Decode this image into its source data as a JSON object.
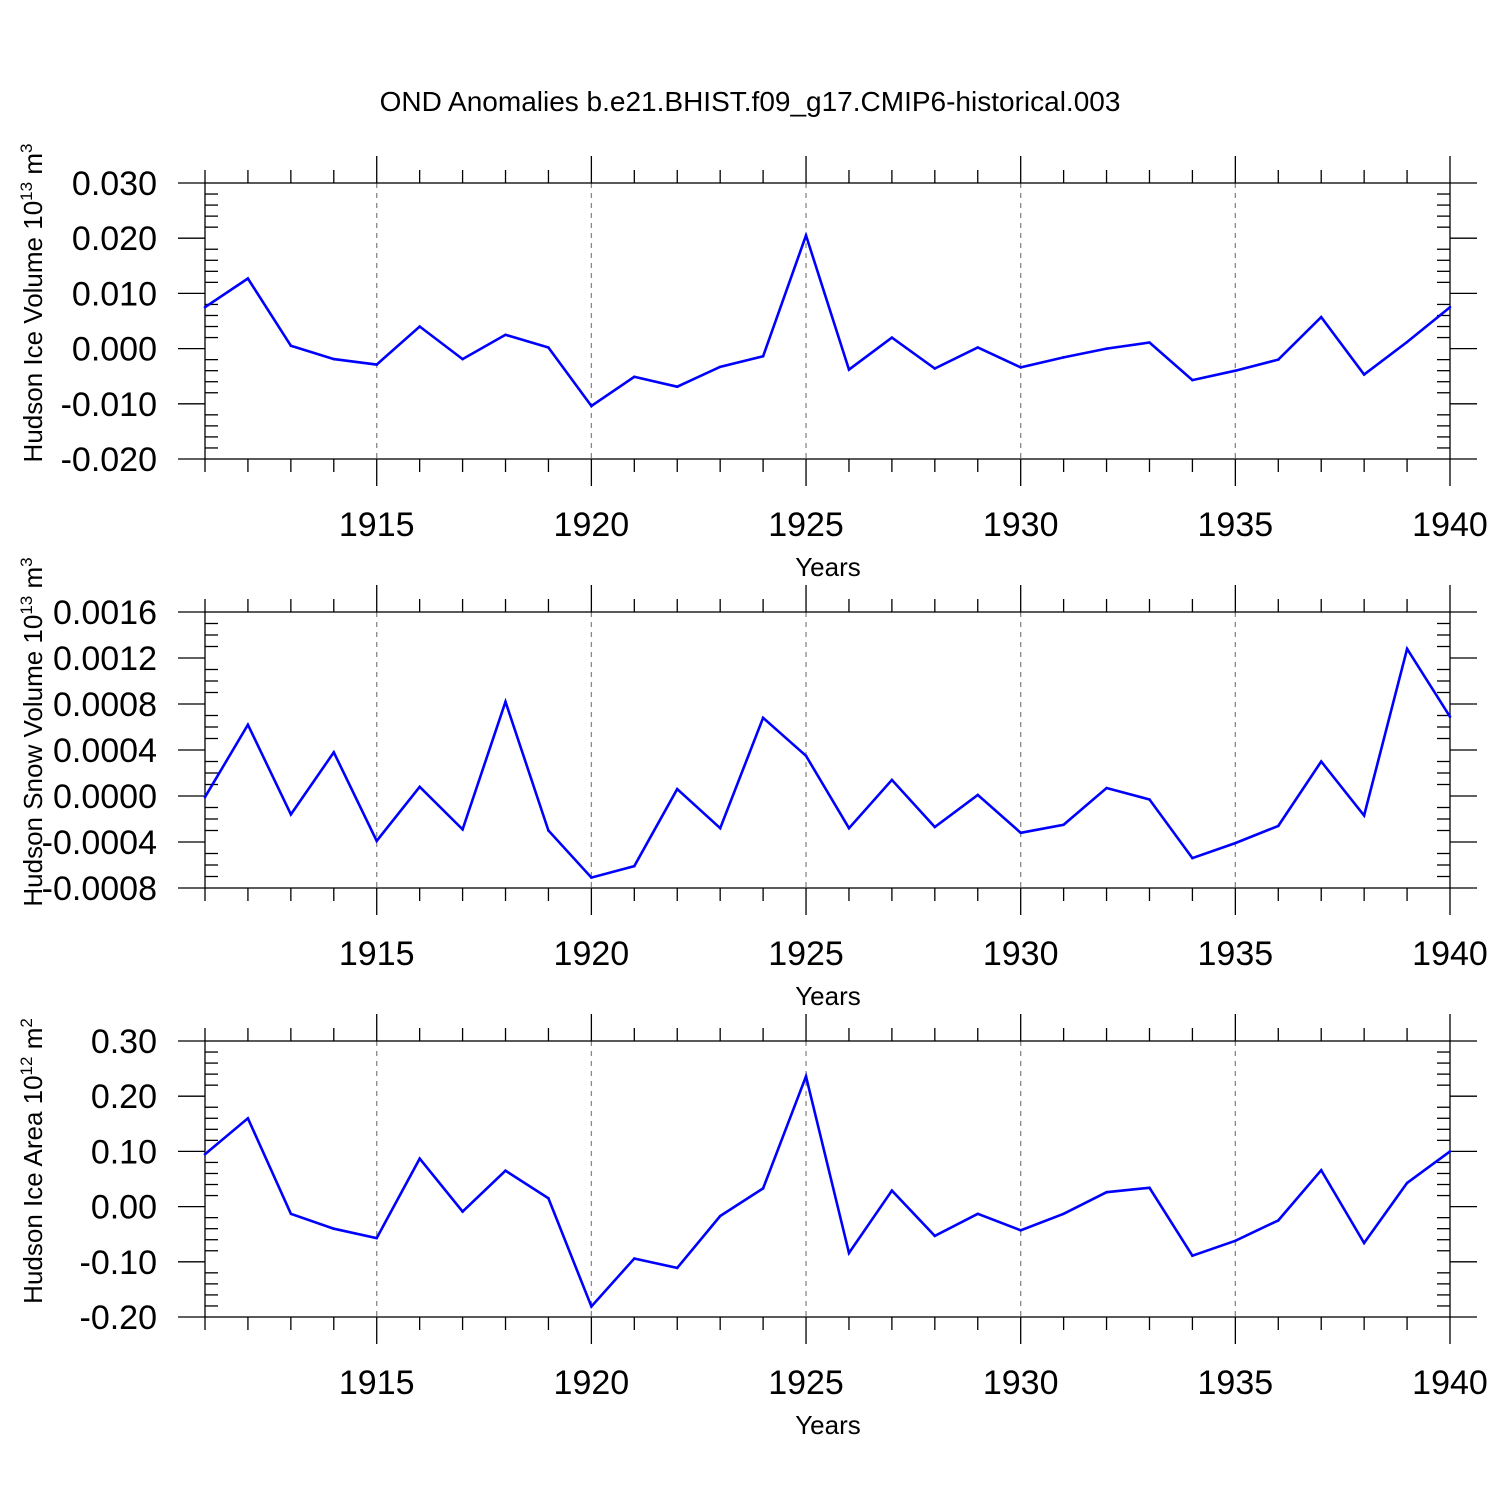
{
  "title": "OND Anomalies b.e21.BHIST.f09_g17.CMIP6-historical.003",
  "colors": {
    "line": "#0000ff",
    "frame": "#000000",
    "grid": "#888888"
  },
  "chart_data": [
    {
      "type": "line",
      "ylabel_main": "Hudson Ice Volume 10",
      "ylabel_sup": "13",
      "ylabel_unit": " m",
      "ylabel_unit_sup": "3",
      "xlabel": "Years",
      "xlim": [
        1911,
        1940
      ],
      "ylim": [
        -0.02,
        0.03
      ],
      "x_ticks": [
        1915,
        1920,
        1925,
        1930,
        1935,
        1940
      ],
      "x_tick_labels": [
        "1915",
        "1920",
        "1925",
        "1930",
        "1935",
        "1940"
      ],
      "y_ticks": [
        -0.02,
        -0.01,
        0.0,
        0.01,
        0.02,
        0.03
      ],
      "y_tick_labels": [
        "-0.020",
        "-0.010",
        "0.000",
        "0.010",
        "0.020",
        "0.030"
      ],
      "y_minor_step": 0.002,
      "grid": "dashed vertical at major x ticks",
      "x": [
        1911,
        1912,
        1913,
        1914,
        1915,
        1916,
        1917,
        1918,
        1919,
        1920,
        1921,
        1922,
        1923,
        1924,
        1925,
        1926,
        1927,
        1928,
        1929,
        1930,
        1931,
        1932,
        1933,
        1934,
        1935,
        1936,
        1937,
        1938,
        1939,
        1940
      ],
      "values": [
        0.0075,
        0.0127,
        0.0005,
        -0.0019,
        -0.0029,
        0.004,
        -0.0019,
        0.0025,
        0.0002,
        -0.0104,
        -0.0051,
        -0.0069,
        -0.0033,
        -0.0014,
        0.0205,
        -0.0038,
        0.002,
        -0.0036,
        0.0002,
        -0.0034,
        -0.0016,
        0.0,
        0.0011,
        -0.0057,
        -0.004,
        -0.002,
        0.0057,
        -0.0047,
        0.0012,
        0.0075
      ]
    },
    {
      "type": "line",
      "ylabel_main": "Hudson Snow Volume 10",
      "ylabel_sup": "13",
      "ylabel_unit": " m",
      "ylabel_unit_sup": "3",
      "xlabel": "Years",
      "xlim": [
        1911,
        1940
      ],
      "ylim": [
        -0.0008,
        0.0016
      ],
      "x_ticks": [
        1915,
        1920,
        1925,
        1930,
        1935,
        1940
      ],
      "x_tick_labels": [
        "1915",
        "1920",
        "1925",
        "1930",
        "1935",
        "1940"
      ],
      "y_ticks": [
        -0.0008,
        -0.0004,
        0.0,
        0.0004,
        0.0008,
        0.0012,
        0.0016
      ],
      "y_tick_labels": [
        "-0.0008",
        "-0.0004",
        "0.0000",
        "0.0004",
        "0.0008",
        "0.0012",
        "0.0016"
      ],
      "y_minor_step": 0.0001,
      "grid": "dashed vertical at major x ticks",
      "x": [
        1911,
        1912,
        1913,
        1914,
        1915,
        1916,
        1917,
        1918,
        1919,
        1920,
        1921,
        1922,
        1923,
        1924,
        1925,
        1926,
        1927,
        1928,
        1929,
        1930,
        1931,
        1932,
        1933,
        1934,
        1935,
        1936,
        1937,
        1938,
        1939,
        1940
      ],
      "values": [
        -1e-05,
        0.00062,
        -0.00016,
        0.00038,
        -0.00039,
        8e-05,
        -0.00029,
        0.00082,
        -0.0003,
        -0.00071,
        -0.00061,
        6e-05,
        -0.00028,
        0.00068,
        0.00035,
        -0.00028,
        0.00014,
        -0.00027,
        1e-05,
        -0.00032,
        -0.00025,
        7e-05,
        -3e-05,
        -0.00054,
        -0.00041,
        -0.00026,
        0.0003,
        -0.00017,
        0.00128,
        0.00069
      ]
    },
    {
      "type": "line",
      "ylabel_main": "Hudson Ice Area 10",
      "ylabel_sup": "12",
      "ylabel_unit": " m",
      "ylabel_unit_sup": "2",
      "xlabel": "Years",
      "xlim": [
        1911,
        1940
      ],
      "ylim": [
        -0.2,
        0.3
      ],
      "x_ticks": [
        1915,
        1920,
        1925,
        1930,
        1935,
        1940
      ],
      "x_tick_labels": [
        "1915",
        "1920",
        "1925",
        "1930",
        "1935",
        "1940"
      ],
      "y_ticks": [
        -0.2,
        -0.1,
        0.0,
        0.1,
        0.2,
        0.3
      ],
      "y_tick_labels": [
        "-0.20",
        "-0.10",
        "0.00",
        "0.10",
        "0.20",
        "0.30"
      ],
      "y_minor_step": 0.02,
      "grid": "dashed vertical at major x ticks",
      "x": [
        1911,
        1912,
        1913,
        1914,
        1915,
        1916,
        1917,
        1918,
        1919,
        1920,
        1921,
        1922,
        1923,
        1924,
        1925,
        1926,
        1927,
        1928,
        1929,
        1930,
        1931,
        1932,
        1933,
        1934,
        1935,
        1936,
        1937,
        1938,
        1939,
        1940
      ],
      "values": [
        0.095,
        0.16,
        -0.013,
        -0.04,
        -0.057,
        0.087,
        -0.009,
        0.065,
        0.015,
        -0.181,
        -0.094,
        -0.111,
        -0.017,
        0.033,
        0.236,
        -0.084,
        0.029,
        -0.053,
        -0.013,
        -0.043,
        -0.013,
        0.026,
        0.034,
        -0.089,
        -0.062,
        -0.025,
        0.066,
        -0.066,
        0.043,
        0.1
      ]
    }
  ]
}
